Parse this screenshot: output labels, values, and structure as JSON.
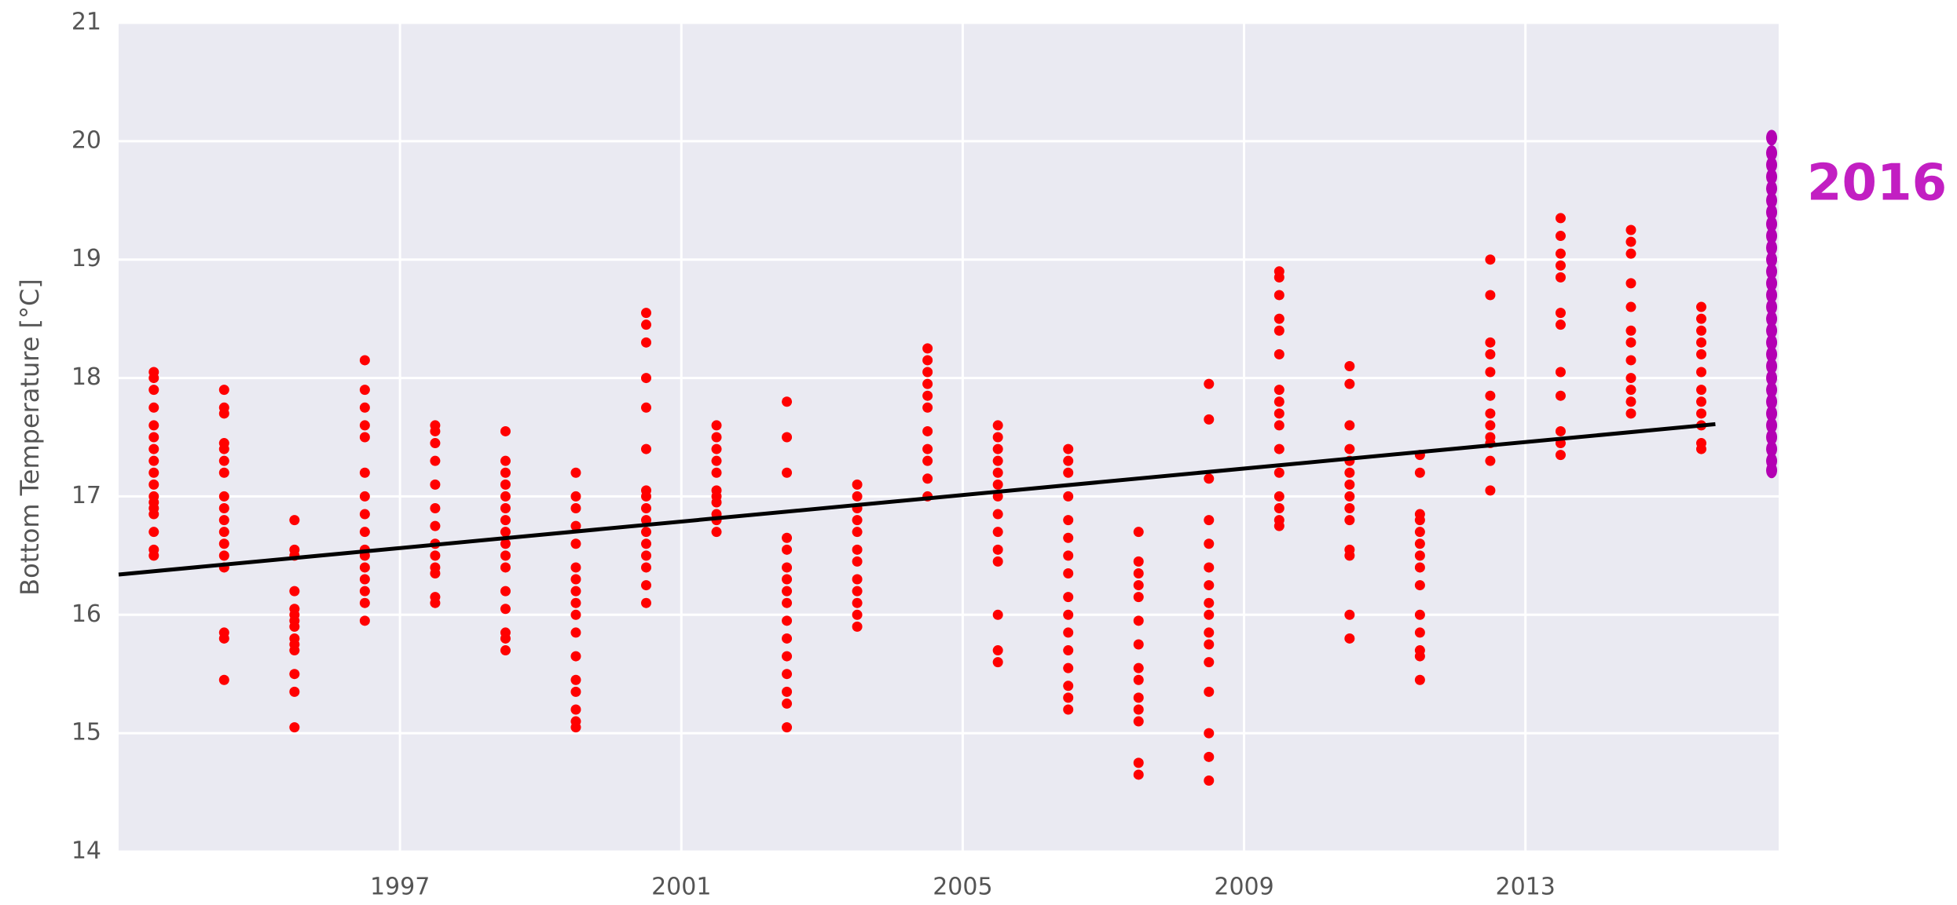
{
  "chart_data": {
    "type": "scatter",
    "ylabel": "Bottom Temperature [°C]",
    "annotation": {
      "text": "2016",
      "color": "#c21fc2"
    },
    "xlim": [
      1993,
      2016.6
    ],
    "ylim": [
      14,
      21
    ],
    "xticks": [
      1997,
      2001,
      2005,
      2009,
      2013
    ],
    "yticks": [
      14,
      15,
      16,
      17,
      18,
      19,
      20,
      21
    ],
    "grid": true,
    "series": [
      {
        "color": "#ff0000",
        "x": 1993.5,
        "values": [
          18.05,
          18.0,
          17.9,
          17.75,
          17.6,
          17.5,
          17.4,
          17.3,
          17.2,
          17.1,
          17.0,
          16.95,
          16.9,
          16.85,
          16.7,
          16.55,
          16.5
        ]
      },
      {
        "color": "#ff0000",
        "x": 1994.5,
        "values": [
          17.9,
          17.75,
          17.7,
          17.45,
          17.4,
          17.3,
          17.2,
          17.0,
          16.9,
          16.8,
          16.7,
          16.6,
          16.5,
          16.4,
          15.85,
          15.8,
          15.45
        ]
      },
      {
        "color": "#ff0000",
        "x": 1995.5,
        "values": [
          16.8,
          16.55,
          16.5,
          16.2,
          16.05,
          16.0,
          15.95,
          15.9,
          15.8,
          15.75,
          15.7,
          15.5,
          15.35,
          15.05
        ]
      },
      {
        "color": "#ff0000",
        "x": 1996.5,
        "values": [
          18.15,
          17.9,
          17.75,
          17.6,
          17.5,
          17.2,
          17.0,
          16.85,
          16.7,
          16.55,
          16.5,
          16.4,
          16.3,
          16.2,
          16.1,
          15.95
        ]
      },
      {
        "color": "#ff0000",
        "x": 1997.5,
        "values": [
          17.6,
          17.55,
          17.45,
          17.3,
          17.1,
          16.9,
          16.75,
          16.6,
          16.5,
          16.4,
          16.35,
          16.15,
          16.1
        ]
      },
      {
        "color": "#ff0000",
        "x": 1998.5,
        "values": [
          17.55,
          17.3,
          17.2,
          17.1,
          17.0,
          16.9,
          16.8,
          16.7,
          16.6,
          16.5,
          16.4,
          16.2,
          16.05,
          15.85,
          15.8,
          15.7
        ]
      },
      {
        "color": "#ff0000",
        "x": 1999.5,
        "values": [
          17.2,
          17.0,
          16.9,
          16.75,
          16.6,
          16.4,
          16.3,
          16.2,
          16.1,
          16.0,
          15.85,
          15.65,
          15.45,
          15.35,
          15.2,
          15.1,
          15.05
        ]
      },
      {
        "color": "#ff0000",
        "x": 2000.5,
        "values": [
          18.55,
          18.45,
          18.3,
          18.0,
          17.75,
          17.4,
          17.05,
          17.0,
          16.9,
          16.8,
          16.7,
          16.6,
          16.5,
          16.4,
          16.25,
          16.1
        ]
      },
      {
        "color": "#ff0000",
        "x": 2001.5,
        "values": [
          17.6,
          17.5,
          17.4,
          17.3,
          17.2,
          17.05,
          17.0,
          16.95,
          16.85,
          16.8,
          16.7
        ]
      },
      {
        "color": "#ff0000",
        "x": 2002.5,
        "values": [
          17.8,
          17.5,
          17.2,
          16.65,
          16.55,
          16.4,
          16.3,
          16.2,
          16.1,
          15.95,
          15.8,
          15.65,
          15.5,
          15.35,
          15.25,
          15.05
        ]
      },
      {
        "color": "#ff0000",
        "x": 2003.5,
        "values": [
          17.1,
          17.0,
          16.9,
          16.8,
          16.7,
          16.55,
          16.45,
          16.3,
          16.2,
          16.1,
          16.0,
          15.9
        ]
      },
      {
        "color": "#ff0000",
        "x": 2004.5,
        "values": [
          18.25,
          18.15,
          18.05,
          17.95,
          17.85,
          17.75,
          17.55,
          17.4,
          17.3,
          17.15,
          17.0
        ]
      },
      {
        "color": "#ff0000",
        "x": 2005.5,
        "values": [
          17.6,
          17.5,
          17.4,
          17.3,
          17.2,
          17.1,
          17.0,
          16.85,
          16.7,
          16.55,
          16.45,
          16.0,
          15.7,
          15.6
        ]
      },
      {
        "color": "#ff0000",
        "x": 2006.5,
        "values": [
          17.4,
          17.3,
          17.2,
          17.0,
          16.8,
          16.65,
          16.5,
          16.35,
          16.15,
          16.0,
          15.85,
          15.7,
          15.55,
          15.4,
          15.3,
          15.2
        ]
      },
      {
        "color": "#ff0000",
        "x": 2007.5,
        "values": [
          16.7,
          16.45,
          16.35,
          16.25,
          16.15,
          15.95,
          15.75,
          15.55,
          15.45,
          15.3,
          15.2,
          15.1,
          14.75,
          14.65
        ]
      },
      {
        "color": "#ff0000",
        "x": 2008.5,
        "values": [
          17.95,
          17.65,
          17.15,
          16.8,
          16.6,
          16.4,
          16.25,
          16.1,
          16.0,
          15.85,
          15.75,
          15.6,
          15.35,
          15.0,
          14.8,
          14.6
        ]
      },
      {
        "color": "#ff0000",
        "x": 2009.5,
        "values": [
          18.9,
          18.85,
          18.7,
          18.5,
          18.4,
          18.2,
          17.9,
          17.8,
          17.7,
          17.6,
          17.4,
          17.2,
          17.0,
          16.9,
          16.8,
          16.75
        ]
      },
      {
        "color": "#ff0000",
        "x": 2010.5,
        "values": [
          18.1,
          17.95,
          17.6,
          17.4,
          17.3,
          17.2,
          17.1,
          17.0,
          16.9,
          16.8,
          16.55,
          16.5,
          16.0,
          15.8
        ]
      },
      {
        "color": "#ff0000",
        "x": 2011.5,
        "values": [
          17.35,
          17.2,
          16.85,
          16.8,
          16.7,
          16.6,
          16.5,
          16.4,
          16.25,
          16.0,
          15.85,
          15.7,
          15.65,
          15.45
        ]
      },
      {
        "color": "#ff0000",
        "x": 2012.5,
        "values": [
          19.0,
          18.7,
          18.3,
          18.2,
          18.05,
          17.85,
          17.7,
          17.6,
          17.5,
          17.45,
          17.3,
          17.05
        ]
      },
      {
        "color": "#ff0000",
        "x": 2013.5,
        "values": [
          19.35,
          19.2,
          19.05,
          18.95,
          18.85,
          18.55,
          18.45,
          18.05,
          17.85,
          17.55,
          17.45,
          17.35
        ]
      },
      {
        "color": "#ff0000",
        "x": 2014.5,
        "values": [
          19.25,
          19.15,
          19.05,
          18.8,
          18.6,
          18.4,
          18.3,
          18.15,
          18.0,
          17.9,
          17.8,
          17.7
        ]
      },
      {
        "color": "#ff0000",
        "x": 2015.5,
        "values": [
          18.6,
          18.5,
          18.4,
          18.3,
          18.2,
          18.05,
          17.9,
          17.8,
          17.7,
          17.6,
          17.45,
          17.4
        ]
      },
      {
        "color": "#b300b3",
        "x": 2016.5,
        "values": [
          17.22,
          17.3,
          17.4,
          17.5,
          17.6,
          17.7,
          17.8,
          17.9,
          18.0,
          18.1,
          18.2,
          18.3,
          18.4,
          18.5,
          18.6,
          18.7,
          18.8,
          18.9,
          19.0,
          19.1,
          19.2,
          19.3,
          19.4,
          19.5,
          19.6,
          19.7,
          19.8,
          19.9,
          20.03
        ]
      }
    ],
    "trend": {
      "color": "#000000",
      "x": [
        1993,
        2015.7
      ],
      "values": [
        16.34,
        17.61
      ]
    }
  }
}
